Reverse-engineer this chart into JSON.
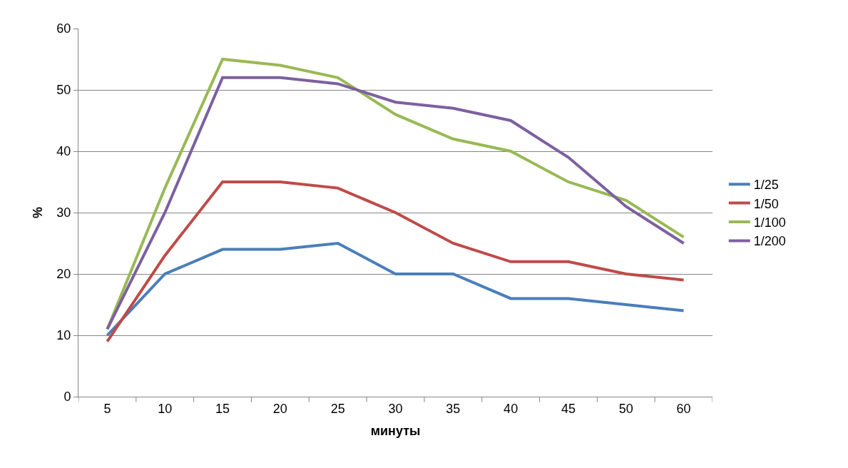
{
  "chart_data": {
    "type": "line",
    "xlabel": "минуты",
    "ylabel": "%",
    "categories": [
      "5",
      "10",
      "15",
      "20",
      "25",
      "30",
      "35",
      "40",
      "45",
      "50",
      "60"
    ],
    "series": [
      {
        "name": "1/25",
        "color": "#4a7ebb",
        "values": [
          10,
          20,
          24,
          24,
          25,
          20,
          20,
          16,
          16,
          15,
          14
        ]
      },
      {
        "name": "1/50",
        "color": "#be4b48",
        "values": [
          9,
          23,
          35,
          35,
          34,
          30,
          25,
          22,
          22,
          20,
          19
        ]
      },
      {
        "name": "1/100",
        "color": "#98b954",
        "values": [
          11,
          34,
          55,
          54,
          52,
          46,
          42,
          40,
          35,
          32,
          26
        ]
      },
      {
        "name": "1/200",
        "color": "#7d60a0",
        "values": [
          11,
          30,
          52,
          52,
          51,
          48,
          47,
          45,
          39,
          31,
          25
        ]
      }
    ],
    "ylim": [
      0,
      60
    ],
    "yticks": [
      0,
      10,
      20,
      30,
      40,
      50,
      60
    ],
    "grid": "y",
    "legend": "right",
    "marker": "none",
    "line_style": "solid"
  }
}
